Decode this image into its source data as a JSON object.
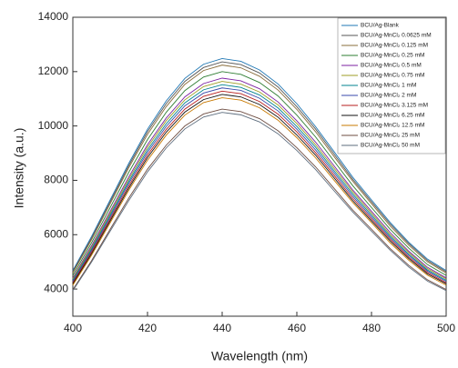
{
  "chart_data": {
    "type": "line",
    "x_label": "Wavelength (nm)",
    "y_label": "Intensity (a.u.)",
    "x": [
      400,
      405,
      410,
      415,
      420,
      425,
      430,
      435,
      440,
      445,
      450,
      455,
      460,
      465,
      470,
      475,
      480,
      485,
      490,
      495,
      500
    ],
    "xlim": [
      400,
      500
    ],
    "xticks": [
      400,
      420,
      440,
      460,
      480,
      500
    ],
    "ylim": [
      3000,
      14000
    ],
    "yticks": [
      4000,
      6000,
      8000,
      10000,
      12000,
      14000
    ],
    "legend": "upper right",
    "series": [
      {
        "name": "BCU/Ag-Blank",
        "color": "#1f77b4",
        "values": [
          4680,
          5930,
          7280,
          8630,
          9880,
          10920,
          11750,
          12270,
          12480,
          12380,
          12060,
          11540,
          10820,
          9980,
          9050,
          8110,
          7280,
          6450,
          5720,
          5100,
          4680
        ]
      },
      {
        "name": "BCU/Ag-MnCl₂ 0.0625 mM",
        "color": "#555555",
        "values": [
          4640,
          5870,
          7210,
          8550,
          9790,
          10820,
          11640,
          12150,
          12360,
          12260,
          11950,
          11430,
          10710,
          9890,
          8960,
          8030,
          7210,
          6390,
          5670,
          5050,
          4640
        ]
      },
      {
        "name": "BCU/Ag-MnCl₂ 0.125 mM",
        "color": "#8a6d3b",
        "values": [
          4590,
          5810,
          7140,
          8470,
          9690,
          10710,
          11530,
          12040,
          12240,
          12140,
          11830,
          11320,
          10610,
          9790,
          8870,
          7960,
          7140,
          6320,
          5610,
          5000,
          4590
        ]
      },
      {
        "name": "BCU/Ag-MnCl₂ 0.25 mM",
        "color": "#2e7d32",
        "values": [
          4500,
          5700,
          7000,
          8300,
          9500,
          10500,
          11300,
          11800,
          12000,
          11900,
          11600,
          11100,
          10400,
          9600,
          8700,
          7800,
          7000,
          6200,
          5500,
          4900,
          4500
        ]
      },
      {
        "name": "BCU/Ag-MnCl₂ 0.5 mM",
        "color": "#7b1fa2",
        "values": [
          4410,
          5590,
          6860,
          8130,
          9310,
          10290,
          11070,
          11560,
          11760,
          11660,
          11370,
          10880,
          10190,
          9410,
          8530,
          7640,
          6860,
          6080,
          5390,
          4800,
          4410
        ]
      },
      {
        "name": "BCU/Ag-MnCl₂ 0.75 mM",
        "color": "#9e9d24",
        "values": [
          4370,
          5530,
          6790,
          8050,
          9220,
          10190,
          10960,
          11450,
          11640,
          11540,
          11250,
          10770,
          10090,
          9310,
          8440,
          7570,
          6790,
          6010,
          5340,
          4750,
          4370
        ]
      },
      {
        "name": "BCU/Ag-MnCl₂ 1 mM",
        "color": "#00838f",
        "values": [
          4320,
          5470,
          6720,
          7970,
          9120,
          10080,
          10850,
          11330,
          11520,
          11420,
          11140,
          10660,
          9980,
          9220,
          8350,
          7490,
          6720,
          5950,
          5280,
          4700,
          4320
        ]
      },
      {
        "name": "BCU/Ag-MnCl₂ 2 mM",
        "color": "#3949ab",
        "values": [
          4280,
          5420,
          6650,
          7890,
          9030,
          9980,
          10740,
          11210,
          11400,
          11310,
          11020,
          10550,
          9880,
          9120,
          8270,
          7410,
          6650,
          5890,
          5230,
          4660,
          4280
        ]
      },
      {
        "name": "BCU/Ag-MnCl₂ 3.125 mM",
        "color": "#b71c1c",
        "values": [
          4230,
          5360,
          6580,
          7800,
          8930,
          9870,
          10620,
          11090,
          11280,
          11190,
          10900,
          10430,
          9780,
          9020,
          8180,
          7330,
          6580,
          5830,
          5170,
          4610,
          4230
        ]
      },
      {
        "name": "BCU/Ag-MnCl₂ 6.25 mM",
        "color": "#111111",
        "values": [
          4190,
          5300,
          6510,
          7720,
          8840,
          9770,
          10510,
          10970,
          11160,
          11070,
          10790,
          10320,
          9670,
          8930,
          8090,
          7250,
          6510,
          5770,
          5120,
          4560,
          4190
        ]
      },
      {
        "name": "BCU/Ag-MnCl₂ 12.5 mM",
        "color": "#c77800",
        "values": [
          4140,
          5240,
          6440,
          7640,
          8740,
          9660,
          10400,
          10860,
          11040,
          10950,
          10670,
          10210,
          9570,
          8830,
          8000,
          7180,
          6440,
          5700,
          5060,
          4510,
          4140
        ]
      },
      {
        "name": "BCU/Ag-MnCl₂ 25 mM",
        "color": "#6d4c41",
        "values": [
          3980,
          5040,
          6200,
          7350,
          8410,
          9290,
          10000,
          10440,
          10620,
          10530,
          10270,
          9820,
          9200,
          8500,
          7700,
          6900,
          6200,
          5490,
          4870,
          4340,
          3980
        ]
      },
      {
        "name": "BCU/Ag-MnCl₂ 50 mM",
        "color": "#5d6d7e",
        "values": [
          3940,
          4990,
          6130,
          7260,
          8310,
          9190,
          9890,
          10330,
          10500,
          10410,
          10150,
          9710,
          9100,
          8400,
          7610,
          6830,
          6130,
          5430,
          4810,
          4290,
          3940
        ]
      }
    ]
  }
}
